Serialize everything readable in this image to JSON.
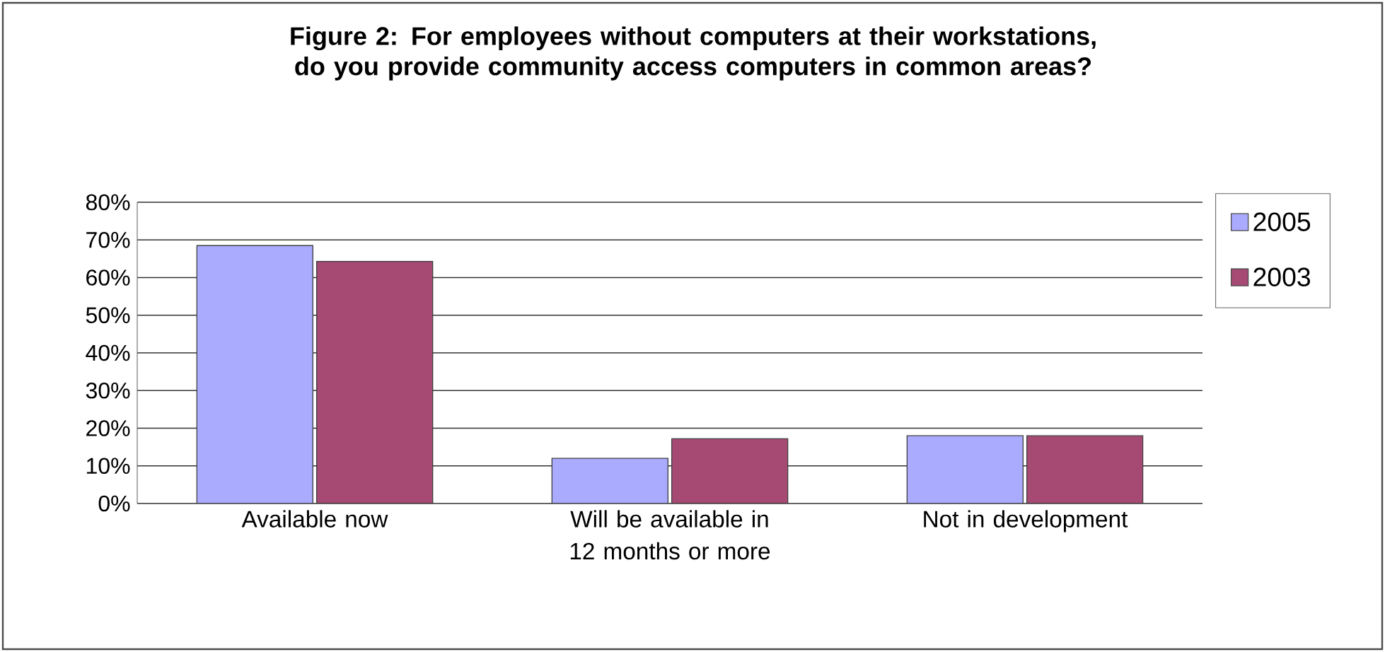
{
  "chart_data": {
    "type": "bar",
    "title": "Figure 2: For employees without computers at their workstations, do you provide community access computers in common areas?",
    "categories": [
      "Available now",
      "Will be available in 12 months or more",
      "Not in development"
    ],
    "series": [
      {
        "name": "2005",
        "color": "#aaaaff",
        "values": [
          68.5,
          12,
          18
        ]
      },
      {
        "name": "2003",
        "color": "#a64a74",
        "values": [
          64.3,
          17.2,
          18
        ]
      }
    ],
    "ylim": [
      0,
      80
    ],
    "yticks": [
      {
        "value": 0,
        "label": "0%"
      },
      {
        "value": 10,
        "label": "10%"
      },
      {
        "value": 20,
        "label": "20%"
      },
      {
        "value": 30,
        "label": "30%"
      },
      {
        "value": 40,
        "label": "40%"
      },
      {
        "value": 50,
        "label": "50%"
      },
      {
        "value": 60,
        "label": "60%"
      },
      {
        "value": 70,
        "label": "70%"
      },
      {
        "value": 80,
        "label": "80%"
      }
    ],
    "grid": "y",
    "legend": "right"
  }
}
